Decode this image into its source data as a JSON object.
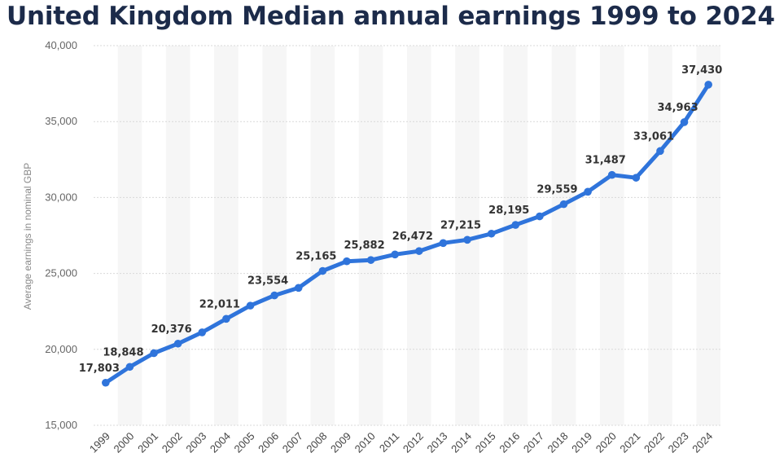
{
  "title": "United Kingdom Median annual earnings  1999 to 2024",
  "chart_data": {
    "type": "line",
    "title": "United Kingdom Median annual earnings  1999 to 2024",
    "xlabel": "",
    "ylabel": "Average earnings in nominal GBP",
    "ylim": [
      15000,
      40000
    ],
    "yticks": [
      15000,
      20000,
      25000,
      30000,
      35000,
      40000
    ],
    "ytick_labels": [
      "15,000",
      "20,000",
      "25,000",
      "30,000",
      "35,000",
      "40,000"
    ],
    "grid": "horizontal",
    "line_color": "#2f74db",
    "categories": [
      "1999",
      "2000",
      "2001",
      "2002",
      "2003",
      "2004",
      "2005",
      "2006",
      "2007",
      "2008",
      "2009",
      "2010",
      "2011",
      "2012",
      "2013",
      "2014",
      "2015",
      "2016",
      "2017",
      "2018",
      "2019",
      "2020",
      "2021",
      "2022",
      "2023",
      "2024"
    ],
    "values": [
      17803,
      18848,
      19750,
      20376,
      21120,
      22011,
      22880,
      23554,
      24050,
      25165,
      25800,
      25882,
      26250,
      26472,
      27000,
      27215,
      27620,
      28195,
      28760,
      29559,
      30380,
      31487,
      31300,
      33061,
      34963,
      37430
    ],
    "labels": [
      "17,803",
      "18,848",
      "",
      "20,376",
      "",
      "22,011",
      "",
      "23,554",
      "",
      "25,165",
      "",
      "25,882",
      "",
      "26,472",
      "",
      "27,215",
      "",
      "28,195",
      "",
      "29,559",
      "",
      "31,487",
      "",
      "33,061",
      "34,963",
      "37,430"
    ]
  }
}
